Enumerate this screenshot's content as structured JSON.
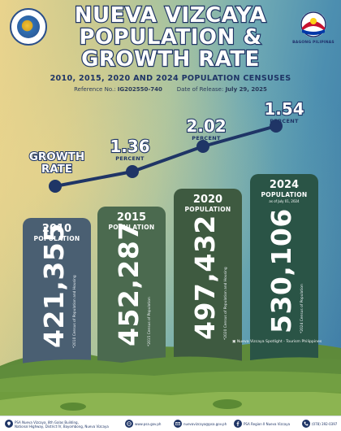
{
  "header": {
    "title_line1": "NUEVA VIZCAYA",
    "title_line2": "POPULATION &",
    "title_line3": "GROWTH RATE",
    "subtitle": "2010, 2015, 2020 AND 2024 POPULATION CENSUSES",
    "reference_label": "Reference No.: ",
    "reference_no": "IG202550-740",
    "release_label": "Date of Release: ",
    "release_date": "July 29, 2025",
    "right_logo_caption": "BAGONG PILIPINAS"
  },
  "growth": {
    "label_line1": "GROWTH",
    "label_line2": "RATE",
    "unit": "PERCENT",
    "rates": [
      "1.36",
      "2.02",
      "1.54"
    ]
  },
  "cards": [
    {
      "year": "2010",
      "label": "POPULATION",
      "as_of": "",
      "value": "421,355",
      "source": "*2010 Census of Population and Housing",
      "color": "#4a5f72"
    },
    {
      "year": "2015",
      "label": "POPULATION",
      "as_of": "",
      "value": "452,287",
      "source": "*2015 Census of Population",
      "color": "#4b6a4f"
    },
    {
      "year": "2020",
      "label": "POPULATION",
      "as_of": "",
      "value": "497,432",
      "source": "*2020 Census of Population and Housing",
      "color": "#3e5a40"
    },
    {
      "year": "2024",
      "label": "POPULATION",
      "as_of": "as of July 01, 2024",
      "value": "530,106",
      "source": "*2024 Census of Population",
      "color": "#2a5446"
    }
  ],
  "photo_credit": "Nueva Vizcaya Spotlight - Tourism Philippines",
  "footer": {
    "address": [
      "PSA Nueva Vizcaya, 8th Galas Building,",
      "National Highway, District IV, Bayombong, Nueva Vizcaya"
    ],
    "website": "www.psa.gov.ph",
    "email": "nuevavizcaya@psa.gov.ph",
    "facebook": "PSA Region II Nueva Vizcaya",
    "phone": "(078) 392-0397"
  },
  "colors": {
    "navy": "#1f3566",
    "white": "#ffffff"
  }
}
